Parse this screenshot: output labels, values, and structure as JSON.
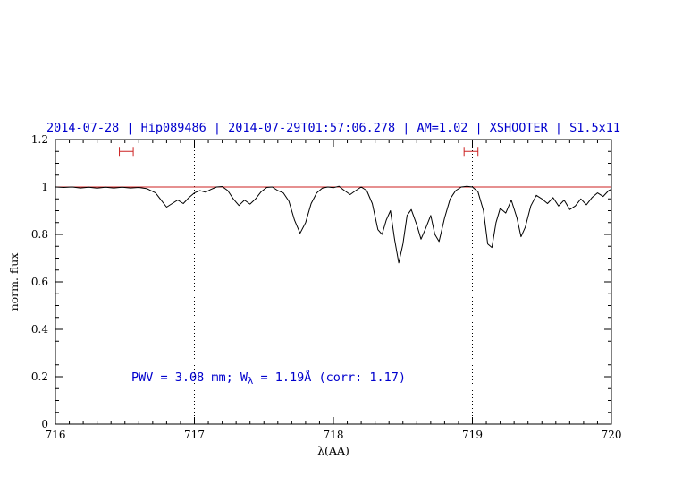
{
  "title": "2014-07-28 | Hip089486 | 2014-07-29T01:57:06.278 | AM=1.02 | XSHOOTER | S1.5x11",
  "annotation": {
    "prefix": "PWV = 3.08 mm; W",
    "sub": "λ",
    "suffix": " = 1.19Å (corr: 1.17)"
  },
  "colors": {
    "accent_blue": "#0000cd",
    "line_red": "#cc2222",
    "spectrum_black": "#000000"
  },
  "chart_data": {
    "type": "line",
    "title": "2014-07-28 | Hip089486 | 2014-07-29T01:57:06.278 | AM=1.02 | XSHOOTER | S1.5x11",
    "xlabel": "λ(AA)",
    "ylabel": "norm. flux",
    "xlim": [
      716,
      720
    ],
    "ylim": [
      0,
      1.2
    ],
    "x_ticks": [
      716,
      717,
      718,
      719,
      720
    ],
    "x_tick_labels": [
      "716",
      "717",
      "718",
      "719",
      "720"
    ],
    "y_ticks": [
      0,
      0.2,
      0.4,
      0.6,
      0.8,
      1,
      1.2
    ],
    "y_tick_labels": [
      "0",
      "0.2",
      "0.4",
      "0.6",
      "0.8",
      "1",
      "1.2"
    ],
    "x_minor_step": 0.1,
    "y_minor_step": 0.05,
    "grid": false,
    "vlines": [
      717,
      719
    ],
    "hline": 1.0,
    "markers": [
      {
        "x1": 716.46,
        "x2": 716.56,
        "y": 1.15
      },
      {
        "x1": 718.94,
        "x2": 719.04,
        "y": 1.15
      }
    ],
    "series": [
      {
        "name": "telluric-spectrum",
        "x": [
          716.0,
          716.06,
          716.12,
          716.18,
          716.24,
          716.3,
          716.36,
          716.42,
          716.48,
          716.54,
          716.6,
          716.66,
          716.72,
          716.76,
          716.8,
          716.84,
          716.88,
          716.92,
          716.96,
          717.0,
          717.04,
          717.08,
          717.12,
          717.16,
          717.2,
          717.24,
          717.28,
          717.32,
          717.36,
          717.4,
          717.44,
          717.48,
          717.52,
          717.56,
          717.6,
          717.64,
          717.68,
          717.72,
          717.76,
          717.8,
          717.84,
          717.88,
          717.92,
          717.96,
          718.0,
          718.04,
          718.08,
          718.12,
          718.16,
          718.2,
          718.24,
          718.28,
          718.32,
          718.35,
          718.38,
          718.41,
          718.44,
          718.47,
          718.5,
          718.53,
          718.56,
          718.6,
          718.63,
          718.66,
          718.7,
          718.73,
          718.76,
          718.8,
          718.84,
          718.88,
          718.92,
          718.96,
          719.0,
          719.04,
          719.08,
          719.11,
          719.14,
          719.17,
          719.2,
          719.24,
          719.28,
          719.32,
          719.35,
          719.38,
          719.42,
          719.46,
          719.5,
          719.54,
          719.58,
          719.62,
          719.66,
          719.7,
          719.74,
          719.78,
          719.82,
          719.86,
          719.9,
          719.94,
          719.98,
          720.0
        ],
        "y": [
          1.0,
          0.998,
          1.0,
          0.996,
          0.999,
          0.995,
          0.999,
          0.996,
          0.999,
          0.996,
          0.998,
          0.993,
          0.975,
          0.945,
          0.915,
          0.93,
          0.945,
          0.93,
          0.955,
          0.975,
          0.985,
          0.978,
          0.99,
          1.0,
          1.002,
          0.985,
          0.95,
          0.922,
          0.945,
          0.928,
          0.95,
          0.98,
          0.998,
          1.0,
          0.985,
          0.975,
          0.94,
          0.86,
          0.805,
          0.85,
          0.93,
          0.975,
          0.995,
          1.0,
          0.997,
          1.003,
          0.985,
          0.968,
          0.985,
          1.0,
          0.985,
          0.93,
          0.82,
          0.8,
          0.86,
          0.9,
          0.78,
          0.68,
          0.76,
          0.88,
          0.905,
          0.84,
          0.78,
          0.82,
          0.88,
          0.8,
          0.77,
          0.87,
          0.95,
          0.985,
          1.0,
          1.003,
          1.0,
          0.98,
          0.9,
          0.76,
          0.745,
          0.85,
          0.91,
          0.89,
          0.945,
          0.87,
          0.79,
          0.83,
          0.92,
          0.965,
          0.95,
          0.93,
          0.955,
          0.92,
          0.945,
          0.905,
          0.92,
          0.95,
          0.925,
          0.955,
          0.975,
          0.96,
          0.985,
          0.99
        ]
      }
    ],
    "legend": false
  }
}
